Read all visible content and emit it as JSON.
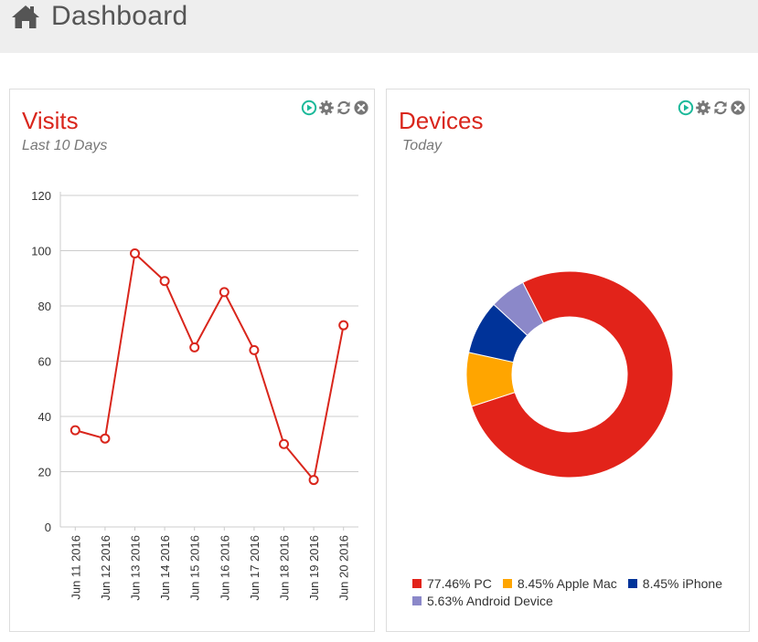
{
  "header": {
    "title": "Dashboard",
    "icon": "home-icon"
  },
  "panels": {
    "visits": {
      "title": "Visits",
      "subtitle": "Last 10 Days"
    },
    "devices": {
      "title": "Devices",
      "subtitle": "Today"
    }
  },
  "tools": [
    "play-icon",
    "gear-icon",
    "refresh-icon",
    "close-icon"
  ],
  "colors": {
    "accent": "#d9261c",
    "tool_play": "#1bb99a",
    "tool_gray": "#777777"
  },
  "chart_data": [
    {
      "type": "line",
      "title": "",
      "xlabel": "",
      "ylabel": "",
      "categories": [
        "Jun 11 2016",
        "Jun 12 2016",
        "Jun 13 2016",
        "Jun 14 2016",
        "Jun 15 2016",
        "Jun 16 2016",
        "Jun 17 2016",
        "Jun 18 2016",
        "Jun 19 2016",
        "Jun 20 2016"
      ],
      "values": [
        35,
        32,
        99,
        89,
        65,
        85,
        64,
        30,
        17,
        73
      ],
      "ylim": [
        0,
        120
      ],
      "yticks": [
        0,
        20,
        40,
        60,
        80,
        100,
        120
      ],
      "grid": true,
      "color": "#d9261c"
    },
    {
      "type": "pie",
      "donut": true,
      "title": "",
      "slices": [
        {
          "label": "77.46% PC",
          "value": 77.46,
          "color": "#e2231a"
        },
        {
          "label": "8.45% Apple Mac",
          "value": 8.45,
          "color": "#ffa500"
        },
        {
          "label": "8.45% iPhone",
          "value": 8.45,
          "color": "#003399"
        },
        {
          "label": "5.63% Android Device",
          "value": 5.63,
          "color": "#8b88c9"
        }
      ],
      "legend": "bottom"
    }
  ]
}
